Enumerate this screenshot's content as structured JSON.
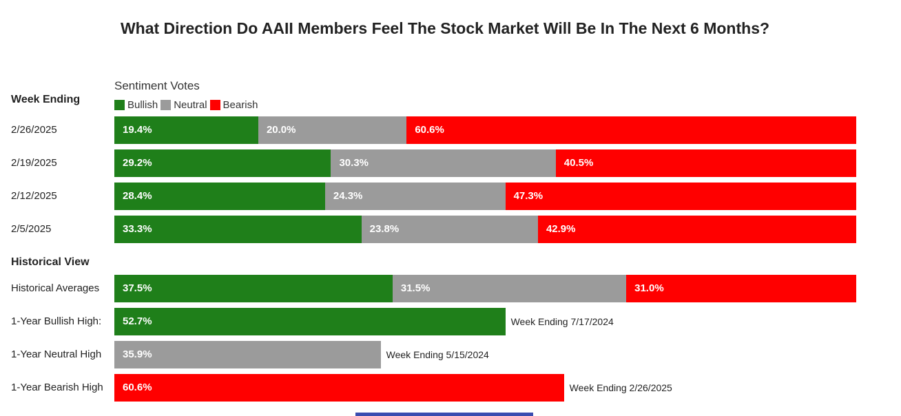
{
  "title": "What Direction Do AAII Members Feel The Stock Market Will Be In The Next 6 Months?",
  "colors": {
    "bullish": "#1f7f1a",
    "neutral": "#9b9b9b",
    "bearish": "#ff0000",
    "strip": "#3a4db0"
  },
  "chart_data": {
    "type": "bar",
    "orientation": "horizontal",
    "stacked": true,
    "title": "What Direction Do AAII Members Feel The Stock Market Will Be In The Next 6 Months?",
    "legend_title": "Sentiment Votes",
    "legend_placement": "top-left",
    "legend": [
      "Bullish",
      "Neutral",
      "Bearish"
    ],
    "xlim": [
      0,
      100
    ],
    "weekly_section_label": "Week Ending",
    "weekly": [
      {
        "label": "2/26/2025",
        "values": [
          19.4,
          20.0,
          60.6
        ],
        "labels": [
          "19.4%",
          "20.0%",
          "60.6%"
        ]
      },
      {
        "label": "2/19/2025",
        "values": [
          29.2,
          30.3,
          40.5
        ],
        "labels": [
          "29.2%",
          "30.3%",
          "40.5%"
        ]
      },
      {
        "label": "2/12/2025",
        "values": [
          28.4,
          24.3,
          47.3
        ],
        "labels": [
          "28.4%",
          "24.3%",
          "47.3%"
        ]
      },
      {
        "label": "2/5/2025",
        "values": [
          33.3,
          23.8,
          42.9
        ],
        "labels": [
          "33.3%",
          "23.8%",
          "42.9%"
        ]
      }
    ],
    "historical_section_label": "Historical View",
    "historical_average": {
      "label": "Historical Averages",
      "values": [
        37.5,
        31.5,
        31.0
      ],
      "labels": [
        "37.5%",
        "31.5%",
        "31.0%"
      ]
    },
    "highs": [
      {
        "label": "1-Year Bullish High:",
        "series": 0,
        "value": 52.7,
        "value_label": "52.7%",
        "note": "Week Ending 7/17/2024"
      },
      {
        "label": "1-Year Neutral High",
        "series": 1,
        "value": 35.9,
        "value_label": "35.9%",
        "note": "Week Ending 5/15/2024"
      },
      {
        "label": "1-Year Bearish High",
        "series": 2,
        "value": 60.6,
        "value_label": "60.6%",
        "note": "Week Ending 2/26/2025"
      }
    ]
  }
}
